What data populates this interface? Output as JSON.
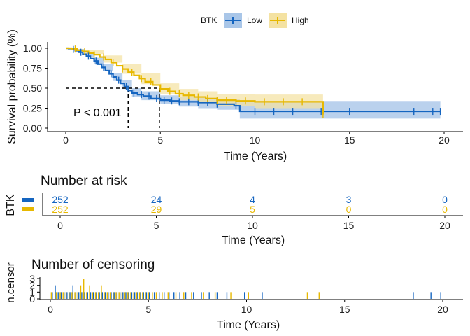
{
  "colors": {
    "low": "#1565C0",
    "high": "#E7B800",
    "low_band": "#A9C6E8",
    "high_band": "#F4E2A2"
  },
  "legend": {
    "title": "BTK",
    "items": [
      {
        "label": "Low",
        "color": "#1565C0"
      },
      {
        "label": "High",
        "color": "#E7B800"
      }
    ]
  },
  "chart_data": [
    {
      "type": "line",
      "subtype": "kaplan-meier",
      "xlabel": "Time (Years)",
      "ylabel": "Survival probability (%)",
      "xlim": [
        0,
        20
      ],
      "ylim": [
        0,
        1
      ],
      "x_ticks": [
        "0",
        "5",
        "10",
        "15",
        "20"
      ],
      "y_ticks": [
        "0.00",
        "0.25",
        "0.50",
        "0.75",
        "1.00"
      ],
      "annotation": "P < 0.001",
      "median_survival": [
        {
          "series": "Low",
          "time": 3.3,
          "survival": 0.5
        },
        {
          "series": "High",
          "time": 4.95,
          "survival": 0.5
        }
      ],
      "series": [
        {
          "name": "Low",
          "color": "#1565C0",
          "steps": [
            [
              0,
              1
            ],
            [
              0.15,
              0.995
            ],
            [
              0.3,
              0.985
            ],
            [
              0.5,
              0.97
            ],
            [
              0.7,
              0.95
            ],
            [
              0.9,
              0.925
            ],
            [
              1.1,
              0.9
            ],
            [
              1.3,
              0.87
            ],
            [
              1.5,
              0.84
            ],
            [
              1.7,
              0.8
            ],
            [
              1.9,
              0.76
            ],
            [
              2.1,
              0.72
            ],
            [
              2.3,
              0.68
            ],
            [
              2.5,
              0.64
            ],
            [
              2.7,
              0.6
            ],
            [
              2.9,
              0.56
            ],
            [
              3.1,
              0.52
            ],
            [
              3.3,
              0.47
            ],
            [
              3.5,
              0.44
            ],
            [
              3.8,
              0.42
            ],
            [
              4.1,
              0.4
            ],
            [
              4.5,
              0.37
            ],
            [
              5,
              0.35
            ],
            [
              5.5,
              0.34
            ],
            [
              6,
              0.33
            ],
            [
              7,
              0.32
            ],
            [
              8,
              0.3
            ],
            [
              8.9,
              0.28
            ],
            [
              9.2,
              0.21
            ],
            [
              19.8,
              0.21
            ]
          ],
          "lower": [
            [
              0,
              1
            ],
            [
              0.5,
              0.95
            ],
            [
              1,
              0.89
            ],
            [
              1.5,
              0.8
            ],
            [
              2,
              0.71
            ],
            [
              2.5,
              0.59
            ],
            [
              3,
              0.49
            ],
            [
              3.5,
              0.39
            ],
            [
              4,
              0.35
            ],
            [
              5,
              0.3
            ],
            [
              6,
              0.27
            ],
            [
              7,
              0.25
            ],
            [
              8,
              0.23
            ],
            [
              9.2,
              0.12
            ],
            [
              19.8,
              0.12
            ]
          ],
          "upper": [
            [
              0,
              1
            ],
            [
              0.5,
              0.99
            ],
            [
              1,
              0.95
            ],
            [
              1.5,
              0.88
            ],
            [
              2,
              0.8
            ],
            [
              2.5,
              0.69
            ],
            [
              3,
              0.6
            ],
            [
              3.5,
              0.5
            ],
            [
              4,
              0.46
            ],
            [
              5,
              0.41
            ],
            [
              6,
              0.39
            ],
            [
              7,
              0.38
            ],
            [
              8,
              0.36
            ],
            [
              9.2,
              0.34
            ],
            [
              19.8,
              0.34
            ]
          ],
          "censor_marks": [
            0.4,
            0.8,
            1.2,
            1.6,
            2,
            2.4,
            2.8,
            3.2,
            3.6,
            4,
            4.4,
            4.8,
            5.2,
            5.6,
            6,
            6.5,
            7,
            7.5,
            8,
            9,
            10,
            11,
            12,
            13.5,
            15,
            18.4,
            19.4,
            19.8
          ]
        },
        {
          "name": "High",
          "color": "#E7B800",
          "steps": [
            [
              0,
              1
            ],
            [
              0.3,
              0.99
            ],
            [
              0.6,
              0.975
            ],
            [
              0.9,
              0.96
            ],
            [
              1.2,
              0.94
            ],
            [
              1.5,
              0.92
            ],
            [
              1.8,
              0.89
            ],
            [
              2.1,
              0.86
            ],
            [
              2.4,
              0.82
            ],
            [
              2.7,
              0.78
            ],
            [
              3,
              0.74
            ],
            [
              3.3,
              0.7
            ],
            [
              3.6,
              0.66
            ],
            [
              3.9,
              0.62
            ],
            [
              4.2,
              0.58
            ],
            [
              4.6,
              0.54
            ],
            [
              5,
              0.49
            ],
            [
              5.4,
              0.46
            ],
            [
              5.8,
              0.43
            ],
            [
              6.2,
              0.41
            ],
            [
              6.8,
              0.39
            ],
            [
              7.4,
              0.37
            ],
            [
              8,
              0.35
            ],
            [
              9,
              0.34
            ],
            [
              10,
              0.33
            ],
            [
              13.55,
              0.33
            ],
            [
              13.6,
              0.17
            ]
          ],
          "lower": [
            [
              0,
              1
            ],
            [
              1,
              0.93
            ],
            [
              2,
              0.82
            ],
            [
              3,
              0.68
            ],
            [
              4,
              0.55
            ],
            [
              5,
              0.43
            ],
            [
              6,
              0.35
            ],
            [
              7,
              0.31
            ],
            [
              8,
              0.28
            ],
            [
              10,
              0.25
            ],
            [
              13.55,
              0.24
            ],
            [
              13.6,
              0
            ]
          ],
          "upper": [
            [
              0,
              1
            ],
            [
              1,
              0.98
            ],
            [
              2,
              0.91
            ],
            [
              3,
              0.8
            ],
            [
              4,
              0.69
            ],
            [
              5,
              0.56
            ],
            [
              6,
              0.49
            ],
            [
              7,
              0.46
            ],
            [
              8,
              0.43
            ],
            [
              10,
              0.42
            ],
            [
              13.55,
              0.42
            ],
            [
              13.6,
              0.7
            ]
          ],
          "censor_marks": [
            0.5,
            1,
            1.5,
            2,
            2.5,
            3,
            3.5,
            4,
            4.5,
            5,
            5.5,
            6,
            6.5,
            7,
            7.5,
            8,
            8.5,
            9.5,
            10.5,
            11.5,
            12.5,
            13.6
          ]
        }
      ]
    },
    {
      "type": "table",
      "title": "Number at risk",
      "ylabel": "BTK",
      "xlabel": "Time (Years)",
      "xlim": [
        0,
        20
      ],
      "x_ticks": [
        "0",
        "5",
        "10",
        "15",
        "20"
      ],
      "times": [
        0,
        5,
        10,
        15,
        20
      ],
      "rows": [
        {
          "name": "Low",
          "color": "#1565C0",
          "values": [
            "252",
            "24",
            "4",
            "3",
            "0"
          ]
        },
        {
          "name": "High",
          "color": "#E7B800",
          "values": [
            "252",
            "29",
            "5",
            "0",
            "0"
          ]
        }
      ]
    },
    {
      "type": "bar",
      "title": "Number of censoring",
      "ylabel": "n.censor",
      "xlabel": "Time (Years)",
      "xlim": [
        0,
        20
      ],
      "ylim": [
        0,
        3
      ],
      "x_ticks": [
        "0",
        "5",
        "10",
        "15",
        "20"
      ],
      "y_ticks": [
        "0",
        "1",
        "2",
        "3"
      ],
      "series": [
        {
          "name": "Low",
          "color": "#1565C0",
          "events": [
            [
              0.1,
              1
            ],
            [
              0.25,
              2
            ],
            [
              0.4,
              1
            ],
            [
              0.55,
              1
            ],
            [
              0.7,
              1
            ],
            [
              0.85,
              1
            ],
            [
              1,
              1
            ],
            [
              1.15,
              2
            ],
            [
              1.3,
              1
            ],
            [
              1.45,
              1
            ],
            [
              1.6,
              1
            ],
            [
              1.75,
              1
            ],
            [
              1.9,
              1
            ],
            [
              2.05,
              1
            ],
            [
              2.2,
              1
            ],
            [
              2.35,
              1
            ],
            [
              2.5,
              1
            ],
            [
              2.65,
              1
            ],
            [
              2.8,
              1
            ],
            [
              2.95,
              1
            ],
            [
              3.1,
              1
            ],
            [
              3.25,
              1
            ],
            [
              3.4,
              1
            ],
            [
              3.55,
              1
            ],
            [
              3.7,
              1
            ],
            [
              3.85,
              1
            ],
            [
              4,
              1
            ],
            [
              4.15,
              1
            ],
            [
              4.3,
              1
            ],
            [
              4.45,
              1
            ],
            [
              4.6,
              1
            ],
            [
              4.75,
              1
            ],
            [
              4.9,
              1
            ],
            [
              5.05,
              1
            ],
            [
              5.3,
              1
            ],
            [
              5.55,
              1
            ],
            [
              5.8,
              1
            ],
            [
              6.05,
              1
            ],
            [
              6.3,
              1
            ],
            [
              6.6,
              1
            ],
            [
              6.9,
              1
            ],
            [
              7.3,
              1
            ],
            [
              7.7,
              1
            ],
            [
              8.1,
              1
            ],
            [
              8.5,
              1
            ],
            [
              9,
              1
            ],
            [
              9.9,
              1
            ],
            [
              10.8,
              1
            ],
            [
              18.5,
              1
            ],
            [
              19.4,
              1
            ],
            [
              19.9,
              1
            ]
          ]
        },
        {
          "name": "High",
          "color": "#E7B800",
          "events": [
            [
              0.05,
              1
            ],
            [
              0.3,
              1
            ],
            [
              0.5,
              1
            ],
            [
              0.65,
              1
            ],
            [
              0.8,
              1
            ],
            [
              0.95,
              1
            ],
            [
              1.1,
              1
            ],
            [
              1.25,
              1
            ],
            [
              1.4,
              1
            ],
            [
              1.55,
              2
            ],
            [
              1.7,
              3
            ],
            [
              1.85,
              1
            ],
            [
              2,
              2
            ],
            [
              2.15,
              1
            ],
            [
              2.3,
              1
            ],
            [
              2.45,
              1
            ],
            [
              2.6,
              2
            ],
            [
              2.75,
              1
            ],
            [
              2.9,
              1
            ],
            [
              3.05,
              1
            ],
            [
              3.2,
              1
            ],
            [
              3.35,
              1
            ],
            [
              3.5,
              1
            ],
            [
              3.65,
              1
            ],
            [
              3.8,
              1
            ],
            [
              3.95,
              1
            ],
            [
              4.1,
              1
            ],
            [
              4.25,
              1
            ],
            [
              4.4,
              1
            ],
            [
              4.55,
              1
            ],
            [
              4.7,
              1
            ],
            [
              4.85,
              1
            ],
            [
              5,
              1
            ],
            [
              5.2,
              1
            ],
            [
              5.4,
              1
            ],
            [
              5.7,
              1
            ],
            [
              6,
              1
            ],
            [
              6.4,
              1
            ],
            [
              6.8,
              1
            ],
            [
              7.2,
              1
            ],
            [
              7.8,
              1
            ],
            [
              8.4,
              1
            ],
            [
              9.2,
              1
            ],
            [
              10.1,
              1
            ],
            [
              13.1,
              1
            ],
            [
              13.7,
              1
            ]
          ]
        }
      ]
    }
  ]
}
